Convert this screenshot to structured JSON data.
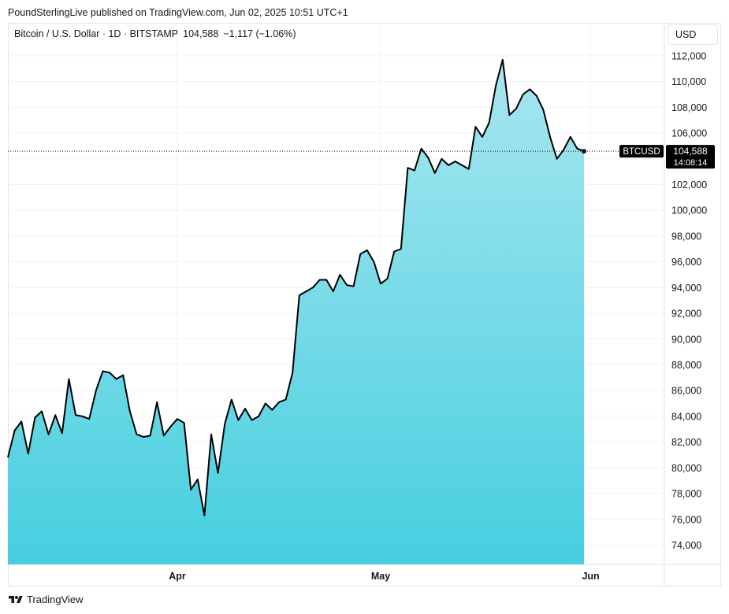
{
  "header": {
    "publisher_line": "PoundSterlingLive published on TradingView.com, Jun 02, 2025 10:51 UTC+1"
  },
  "legend": {
    "instrument": "Bitcoin / U.S. Dollar · 1D · BITSTAMP",
    "last": "104,588",
    "change": "−1,117 (−1.06%)"
  },
  "currency_button": "USD",
  "brand": "TradingView",
  "colors": {
    "line": "#000000",
    "fill_top": "#a8e6f0",
    "fill_bottom": "#46cfe0",
    "grid": "#f0f3fa",
    "tag": "#000000"
  },
  "chart_data": {
    "type": "area",
    "title": "",
    "xlabel": "",
    "ylabel": "",
    "ylim": [
      72500,
      114500
    ],
    "y_ticks": [
      "74,000",
      "76,000",
      "78,000",
      "80,000",
      "82,000",
      "84,000",
      "86,000",
      "88,000",
      "90,000",
      "92,000",
      "94,000",
      "96,000",
      "98,000",
      "100,000",
      "102,000",
      "104,000",
      "106,000",
      "108,000",
      "110,000",
      "112,000"
    ],
    "x_ticks": [
      {
        "label": "Apr",
        "date": "2025-04-01"
      },
      {
        "label": "May",
        "date": "2025-05-01"
      },
      {
        "label": "Jun",
        "date": "2025-06-01"
      }
    ],
    "x_start": "2025-03-07",
    "price_tag": {
      "symbol": "BTCUSD",
      "value": 104588,
      "value_label": "104,588",
      "countdown": "14:08:14"
    },
    "series": [
      {
        "values": [
          {
            "x": "2025-03-07",
            "y": 80800
          },
          {
            "x": "2025-03-08",
            "y": 82900
          },
          {
            "x": "2025-03-09",
            "y": 83600
          },
          {
            "x": "2025-03-10",
            "y": 81100
          },
          {
            "x": "2025-03-11",
            "y": 83900
          },
          {
            "x": "2025-03-12",
            "y": 84400
          },
          {
            "x": "2025-03-13",
            "y": 82600
          },
          {
            "x": "2025-03-14",
            "y": 84100
          },
          {
            "x": "2025-03-15",
            "y": 82700
          },
          {
            "x": "2025-03-16",
            "y": 86900
          },
          {
            "x": "2025-03-17",
            "y": 84100
          },
          {
            "x": "2025-03-18",
            "y": 84000
          },
          {
            "x": "2025-03-19",
            "y": 83800
          },
          {
            "x": "2025-03-20",
            "y": 86000
          },
          {
            "x": "2025-03-21",
            "y": 87500
          },
          {
            "x": "2025-03-22",
            "y": 87400
          },
          {
            "x": "2025-03-23",
            "y": 86900
          },
          {
            "x": "2025-03-24",
            "y": 87200
          },
          {
            "x": "2025-03-25",
            "y": 84400
          },
          {
            "x": "2025-03-26",
            "y": 82600
          },
          {
            "x": "2025-03-27",
            "y": 82400
          },
          {
            "x": "2025-03-28",
            "y": 82500
          },
          {
            "x": "2025-03-29",
            "y": 85100
          },
          {
            "x": "2025-03-30",
            "y": 82500
          },
          {
            "x": "2025-03-31",
            "y": 83200
          },
          {
            "x": "2025-04-01",
            "y": 83800
          },
          {
            "x": "2025-04-02",
            "y": 83500
          },
          {
            "x": "2025-04-03",
            "y": 78300
          },
          {
            "x": "2025-04-04",
            "y": 79100
          },
          {
            "x": "2025-04-05",
            "y": 76300
          },
          {
            "x": "2025-04-06",
            "y": 82600
          },
          {
            "x": "2025-04-07",
            "y": 79600
          },
          {
            "x": "2025-04-08",
            "y": 83400
          },
          {
            "x": "2025-04-09",
            "y": 85300
          },
          {
            "x": "2025-04-10",
            "y": 83700
          },
          {
            "x": "2025-04-11",
            "y": 84600
          },
          {
            "x": "2025-04-12",
            "y": 83700
          },
          {
            "x": "2025-04-13",
            "y": 84000
          },
          {
            "x": "2025-04-14",
            "y": 85000
          },
          {
            "x": "2025-04-15",
            "y": 84500
          },
          {
            "x": "2025-04-16",
            "y": 85100
          },
          {
            "x": "2025-04-17",
            "y": 85300
          },
          {
            "x": "2025-04-18",
            "y": 87400
          },
          {
            "x": "2025-04-19",
            "y": 93400
          },
          {
            "x": "2025-04-20",
            "y": 93700
          },
          {
            "x": "2025-04-21",
            "y": 94000
          },
          {
            "x": "2025-04-22",
            "y": 94600
          },
          {
            "x": "2025-04-23",
            "y": 94600
          },
          {
            "x": "2025-04-24",
            "y": 93700
          },
          {
            "x": "2025-04-25",
            "y": 95000
          },
          {
            "x": "2025-04-26",
            "y": 94200
          },
          {
            "x": "2025-04-27",
            "y": 94100
          },
          {
            "x": "2025-04-28",
            "y": 96600
          },
          {
            "x": "2025-04-29",
            "y": 96900
          },
          {
            "x": "2025-04-30",
            "y": 96000
          },
          {
            "x": "2025-05-01",
            "y": 94300
          },
          {
            "x": "2025-05-02",
            "y": 94700
          },
          {
            "x": "2025-05-03",
            "y": 96800
          },
          {
            "x": "2025-05-04",
            "y": 97000
          },
          {
            "x": "2025-05-05",
            "y": 103300
          },
          {
            "x": "2025-05-06",
            "y": 103100
          },
          {
            "x": "2025-05-07",
            "y": 104800
          },
          {
            "x": "2025-05-08",
            "y": 104100
          },
          {
            "x": "2025-05-09",
            "y": 102900
          },
          {
            "x": "2025-05-10",
            "y": 104000
          },
          {
            "x": "2025-05-11",
            "y": 103500
          },
          {
            "x": "2025-05-12",
            "y": 103800
          },
          {
            "x": "2025-05-13",
            "y": 103500
          },
          {
            "x": "2025-05-14",
            "y": 103200
          },
          {
            "x": "2025-05-15",
            "y": 106500
          },
          {
            "x": "2025-05-16",
            "y": 105700
          },
          {
            "x": "2025-05-17",
            "y": 106800
          },
          {
            "x": "2025-05-18",
            "y": 109700
          },
          {
            "x": "2025-05-19",
            "y": 111700
          },
          {
            "x": "2025-05-20",
            "y": 107400
          },
          {
            "x": "2025-05-21",
            "y": 107900
          },
          {
            "x": "2025-05-22",
            "y": 109000
          },
          {
            "x": "2025-05-23",
            "y": 109400
          },
          {
            "x": "2025-05-24",
            "y": 108900
          },
          {
            "x": "2025-05-25",
            "y": 107800
          },
          {
            "x": "2025-05-26",
            "y": 105700
          },
          {
            "x": "2025-05-27",
            "y": 104000
          },
          {
            "x": "2025-05-28",
            "y": 104700
          },
          {
            "x": "2025-05-29",
            "y": 105700
          },
          {
            "x": "2025-05-30",
            "y": 104800
          },
          {
            "x": "2025-05-31",
            "y": 104588
          }
        ]
      }
    ],
    "grid": true
  }
}
